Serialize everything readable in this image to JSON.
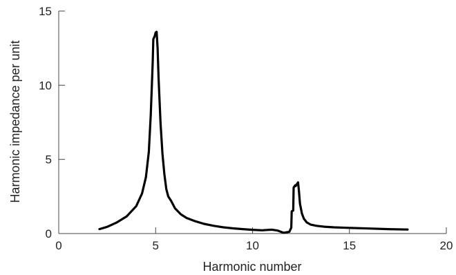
{
  "chart_data": {
    "type": "line",
    "title": "",
    "xlabel": "Harmonic number",
    "ylabel": "Harmonic impedance per unit",
    "xlim": [
      0,
      20
    ],
    "ylim": [
      0,
      15
    ],
    "xticks": [
      0,
      5,
      10,
      15,
      20
    ],
    "yticks": [
      0,
      5,
      10,
      15
    ],
    "grid": false,
    "line_color": "#000000",
    "series": [
      {
        "x": [
          2.1,
          2.5,
          3.0,
          3.5,
          4.0,
          4.3,
          4.5,
          4.65,
          4.75,
          4.85,
          4.88,
          4.95,
          5.0,
          5.05,
          5.1,
          5.15,
          5.25,
          5.35,
          5.45,
          5.55,
          5.65,
          5.8,
          6.0,
          6.3,
          6.6,
          7.0,
          7.5,
          8.0,
          8.5,
          9.0,
          9.5,
          10.0,
          10.5,
          11.0,
          11.3,
          11.6,
          11.9,
          12.0,
          12.02,
          12.1,
          12.12,
          12.2,
          12.22,
          12.35,
          12.4,
          12.45,
          12.55,
          12.65,
          12.8,
          13.0,
          13.3,
          13.7,
          14.2,
          15.0,
          16.0,
          17.0,
          18.0
        ],
        "y": [
          0.3,
          0.45,
          0.75,
          1.15,
          1.85,
          2.7,
          3.8,
          5.5,
          8.0,
          11.5,
          13.1,
          13.3,
          13.55,
          13.6,
          12.5,
          10.5,
          7.5,
          5.4,
          4.0,
          3.0,
          2.5,
          2.2,
          1.7,
          1.3,
          1.05,
          0.85,
          0.65,
          0.52,
          0.42,
          0.35,
          0.3,
          0.25,
          0.22,
          0.26,
          0.2,
          0.05,
          0.12,
          0.4,
          1.5,
          1.55,
          3.1,
          3.25,
          3.2,
          3.45,
          2.8,
          2.0,
          1.35,
          1.0,
          0.75,
          0.6,
          0.52,
          0.46,
          0.42,
          0.38,
          0.34,
          0.3,
          0.27
        ]
      }
    ]
  }
}
